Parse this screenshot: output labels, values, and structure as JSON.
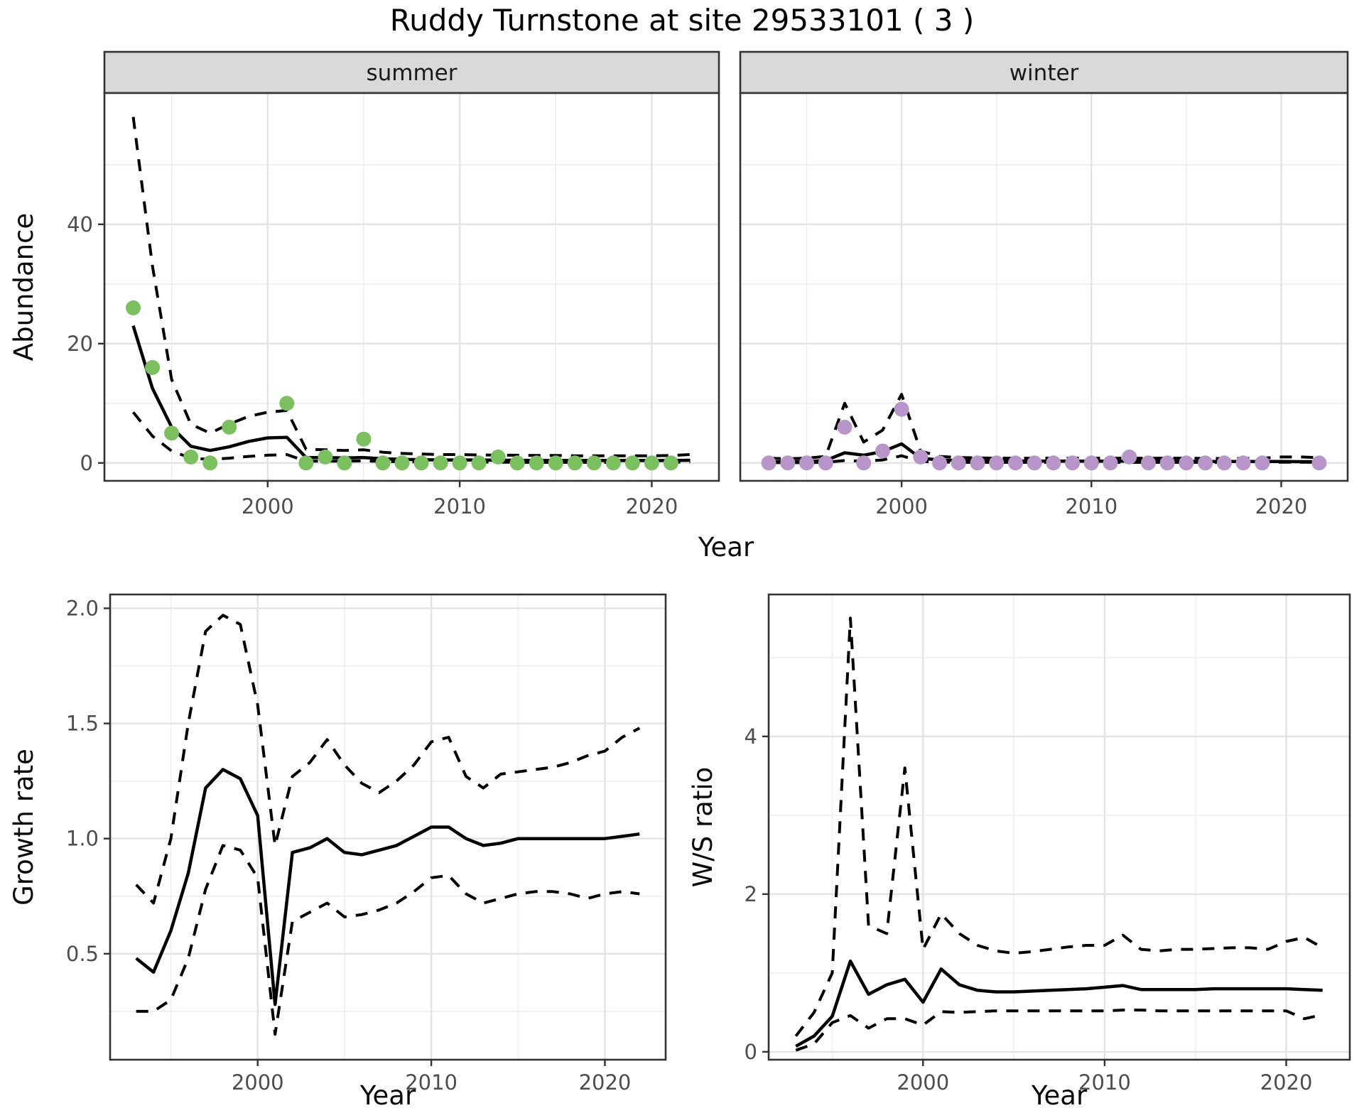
{
  "title": "Ruddy Turnstone at site 29533101 ( 3 )",
  "colors": {
    "background": "#ffffff",
    "panel_bg": "#ffffff",
    "strip_bg": "#d9d9d9",
    "panel_border": "#333333",
    "grid_major": "#e3e3e3",
    "grid_minor": "#eeeeee",
    "tick": "#333333",
    "tick_label": "#4d4d4d",
    "line": "#000000",
    "summer_point": "#7ac05e",
    "winter_point": "#b795c8"
  },
  "chart_data": [
    {
      "type": "line",
      "facet_labels": [
        "summer",
        "winter"
      ],
      "xlabel": "Year",
      "ylabel": "Abundance",
      "xlim": [
        1991.5,
        2023.5
      ],
      "ylim": [
        -3,
        62
      ],
      "xticks": [
        2000,
        2010,
        2020
      ],
      "xtick_labels": [
        "2000",
        "2010",
        "2020"
      ],
      "yticks": [
        0,
        20,
        40
      ],
      "ytick_labels": [
        "0",
        "20",
        "40"
      ],
      "x_minor": [
        1995,
        2005,
        2015
      ],
      "y_minor": [
        10,
        30,
        50
      ],
      "years": [
        1993,
        1994,
        1995,
        1996,
        1997,
        1998,
        1999,
        2000,
        2001,
        2002,
        2003,
        2004,
        2005,
        2006,
        2007,
        2008,
        2009,
        2010,
        2011,
        2012,
        2013,
        2014,
        2015,
        2016,
        2017,
        2018,
        2019,
        2020,
        2021,
        2022
      ],
      "facets": [
        {
          "label": "summer",
          "point_color": "#7ac05e",
          "observations": {
            "x": [
              1993,
              1994,
              1995,
              1996,
              1997,
              1998,
              2001,
              2002,
              2003,
              2004,
              2005,
              2006,
              2007,
              2008,
              2009,
              2010,
              2011,
              2012,
              2013,
              2014,
              2015,
              2016,
              2017,
              2018,
              2019,
              2020,
              2021
            ],
            "y": [
              26,
              16,
              5,
              1,
              0,
              6,
              10,
              0,
              1,
              0,
              4,
              0,
              0,
              0,
              0,
              0,
              0,
              1,
              0,
              0,
              0,
              0,
              0,
              0,
              0,
              0,
              0
            ]
          },
          "series": [
            {
              "name": "fit",
              "style": "solid",
              "y": [
                23,
                12.5,
                6,
                2.8,
                2.1,
                2.7,
                3.6,
                4.2,
                4.3,
                0.9,
                0.9,
                0.85,
                0.9,
                0.7,
                0.6,
                0.55,
                0.5,
                0.5,
                0.5,
                0.45,
                0.45,
                0.4,
                0.4,
                0.4,
                0.4,
                0.4,
                0.4,
                0.4,
                0.4,
                0.45
              ]
            },
            {
              "name": "upper-ci",
              "style": "dashed",
              "y": [
                58,
                33,
                14,
                6.5,
                5,
                6.5,
                7.8,
                8.5,
                8.8,
                2.3,
                2.2,
                2.1,
                2.2,
                1.8,
                1.6,
                1.5,
                1.4,
                1.4,
                1.35,
                1.3,
                1.3,
                1.25,
                1.25,
                1.2,
                1.2,
                1.2,
                1.2,
                1.2,
                1.25,
                1.4
              ]
            },
            {
              "name": "lower-ci",
              "style": "dashed",
              "y": [
                8.5,
                4.5,
                2,
                0.8,
                0.6,
                0.8,
                1.1,
                1.3,
                1.4,
                0.3,
                0.3,
                0.3,
                0.35,
                0.25,
                0.2,
                0.18,
                0.15,
                0.15,
                0.15,
                0.12,
                0.12,
                0.1,
                0.1,
                0.1,
                0.1,
                0.1,
                0.1,
                0.1,
                0.12,
                0.15
              ]
            }
          ]
        },
        {
          "label": "winter",
          "point_color": "#b795c8",
          "observations": {
            "x": [
              1993,
              1994,
              1995,
              1996,
              1997,
              1998,
              1999,
              2000,
              2001,
              2002,
              2003,
              2004,
              2005,
              2006,
              2007,
              2008,
              2009,
              2010,
              2011,
              2012,
              2013,
              2014,
              2015,
              2016,
              2017,
              2018,
              2019,
              2022
            ],
            "y": [
              0,
              0,
              0,
              0,
              6,
              0,
              2,
              9,
              1,
              0,
              0,
              0,
              0,
              0,
              0,
              0,
              0,
              0,
              0,
              1,
              0,
              0,
              0,
              0,
              0,
              0,
              0,
              0
            ]
          },
          "series": [
            {
              "name": "fit",
              "style": "solid",
              "y": [
                0.2,
                0.2,
                0.25,
                0.4,
                1.7,
                1.3,
                1.9,
                3.2,
                0.8,
                0.5,
                0.4,
                0.35,
                0.3,
                0.3,
                0.3,
                0.3,
                0.3,
                0.3,
                0.3,
                0.3,
                0.3,
                0.28,
                0.28,
                0.25,
                0.25,
                0.25,
                0.25,
                0.25,
                0.22,
                0.22
              ]
            },
            {
              "name": "upper-ci",
              "style": "dashed",
              "y": [
                0.8,
                0.7,
                0.8,
                1.1,
                10,
                3.5,
                5.5,
                11.5,
                2,
                1.1,
                0.9,
                0.85,
                0.8,
                0.8,
                0.8,
                0.8,
                0.8,
                0.8,
                0.8,
                0.8,
                0.8,
                0.8,
                0.8,
                0.75,
                0.75,
                0.75,
                0.8,
                1.0,
                1.0,
                0.9
              ]
            },
            {
              "name": "lower-ci",
              "style": "dashed",
              "y": [
                0.05,
                0.05,
                0.05,
                0.1,
                0.4,
                0.3,
                0.5,
                1.2,
                0.25,
                0.15,
                0.1,
                0.1,
                0.1,
                0.1,
                0.1,
                0.1,
                0.1,
                0.1,
                0.1,
                0.1,
                0.1,
                0.1,
                0.1,
                0.08,
                0.08,
                0.08,
                0.1,
                0.12,
                0.12,
                0.1
              ]
            }
          ]
        }
      ]
    },
    {
      "type": "line",
      "xlabel": "Year",
      "ylabel": "Growth rate",
      "xlim": [
        1991.5,
        2023.5
      ],
      "ylim": [
        0.04,
        2.06
      ],
      "xticks": [
        2000,
        2010,
        2020
      ],
      "xtick_labels": [
        "2000",
        "2010",
        "2020"
      ],
      "yticks": [
        0.5,
        1.0,
        1.5,
        2.0
      ],
      "ytick_labels": [
        "0.5",
        "1.0",
        "1.5",
        "2.0"
      ],
      "x_minor": [
        1995,
        2005,
        2015
      ],
      "y_minor": [
        0.25,
        0.75,
        1.25,
        1.75
      ],
      "years": [
        1993,
        1994,
        1995,
        1996,
        1997,
        1998,
        1999,
        2000,
        2001,
        2002,
        2003,
        2004,
        2005,
        2006,
        2007,
        2008,
        2009,
        2010,
        2011,
        2012,
        2013,
        2014,
        2015,
        2016,
        2017,
        2018,
        2019,
        2020,
        2021,
        2022
      ],
      "series": [
        {
          "name": "fit",
          "style": "solid",
          "y": [
            0.48,
            0.42,
            0.6,
            0.85,
            1.22,
            1.3,
            1.26,
            1.1,
            0.28,
            0.94,
            0.96,
            1.0,
            0.94,
            0.93,
            0.95,
            0.97,
            1.01,
            1.05,
            1.05,
            1.0,
            0.97,
            0.98,
            1.0,
            1.0,
            1.0,
            1.0,
            1.0,
            1.0,
            1.01,
            1.02
          ]
        },
        {
          "name": "upper-ci",
          "style": "dashed",
          "y": [
            0.8,
            0.72,
            1.0,
            1.5,
            1.9,
            1.97,
            1.93,
            1.58,
            0.97,
            1.27,
            1.33,
            1.43,
            1.32,
            1.24,
            1.2,
            1.25,
            1.32,
            1.42,
            1.44,
            1.27,
            1.22,
            1.28,
            1.29,
            1.3,
            1.31,
            1.33,
            1.36,
            1.38,
            1.44,
            1.48
          ]
        },
        {
          "name": "lower-ci",
          "style": "dashed",
          "y": [
            0.25,
            0.25,
            0.3,
            0.48,
            0.78,
            0.97,
            0.95,
            0.83,
            0.15,
            0.64,
            0.68,
            0.72,
            0.66,
            0.67,
            0.69,
            0.72,
            0.77,
            0.83,
            0.84,
            0.76,
            0.72,
            0.74,
            0.76,
            0.77,
            0.77,
            0.76,
            0.74,
            0.76,
            0.77,
            0.76
          ]
        }
      ]
    },
    {
      "type": "line",
      "xlabel": "Year",
      "ylabel": "W/S ratio",
      "xlim": [
        1991.5,
        2023.5
      ],
      "ylim": [
        -0.1,
        5.8
      ],
      "xticks": [
        2000,
        2010,
        2020
      ],
      "xtick_labels": [
        "2000",
        "2010",
        "2020"
      ],
      "yticks": [
        0,
        2,
        4
      ],
      "ytick_labels": [
        "0",
        "2",
        "4"
      ],
      "x_minor": [
        1995,
        2005,
        2015
      ],
      "y_minor": [
        1,
        3,
        5
      ],
      "years": [
        1993,
        1994,
        1995,
        1996,
        1997,
        1998,
        1999,
        2000,
        2001,
        2002,
        2003,
        2004,
        2005,
        2006,
        2007,
        2008,
        2009,
        2010,
        2011,
        2012,
        2013,
        2014,
        2015,
        2016,
        2017,
        2018,
        2019,
        2020,
        2021,
        2022
      ],
      "series": [
        {
          "name": "fit",
          "style": "solid",
          "y": [
            0.07,
            0.2,
            0.45,
            1.15,
            0.73,
            0.85,
            0.92,
            0.63,
            1.05,
            0.85,
            0.78,
            0.76,
            0.76,
            0.77,
            0.78,
            0.79,
            0.8,
            0.82,
            0.84,
            0.79,
            0.79,
            0.79,
            0.79,
            0.8,
            0.8,
            0.8,
            0.8,
            0.8,
            0.79,
            0.78
          ]
        },
        {
          "name": "upper-ci",
          "style": "dashed",
          "y": [
            0.2,
            0.5,
            1.0,
            5.5,
            1.6,
            1.5,
            3.6,
            1.3,
            1.75,
            1.5,
            1.35,
            1.28,
            1.25,
            1.27,
            1.3,
            1.33,
            1.35,
            1.35,
            1.48,
            1.3,
            1.28,
            1.3,
            1.3,
            1.31,
            1.32,
            1.32,
            1.3,
            1.4,
            1.45,
            1.32
          ]
        },
        {
          "name": "lower-ci",
          "style": "dashed",
          "y": [
            0.02,
            0.1,
            0.37,
            0.46,
            0.3,
            0.42,
            0.42,
            0.34,
            0.51,
            0.5,
            0.51,
            0.52,
            0.52,
            0.52,
            0.52,
            0.52,
            0.52,
            0.52,
            0.53,
            0.53,
            0.52,
            0.52,
            0.52,
            0.52,
            0.52,
            0.52,
            0.52,
            0.52,
            0.42,
            0.47
          ]
        }
      ]
    }
  ]
}
